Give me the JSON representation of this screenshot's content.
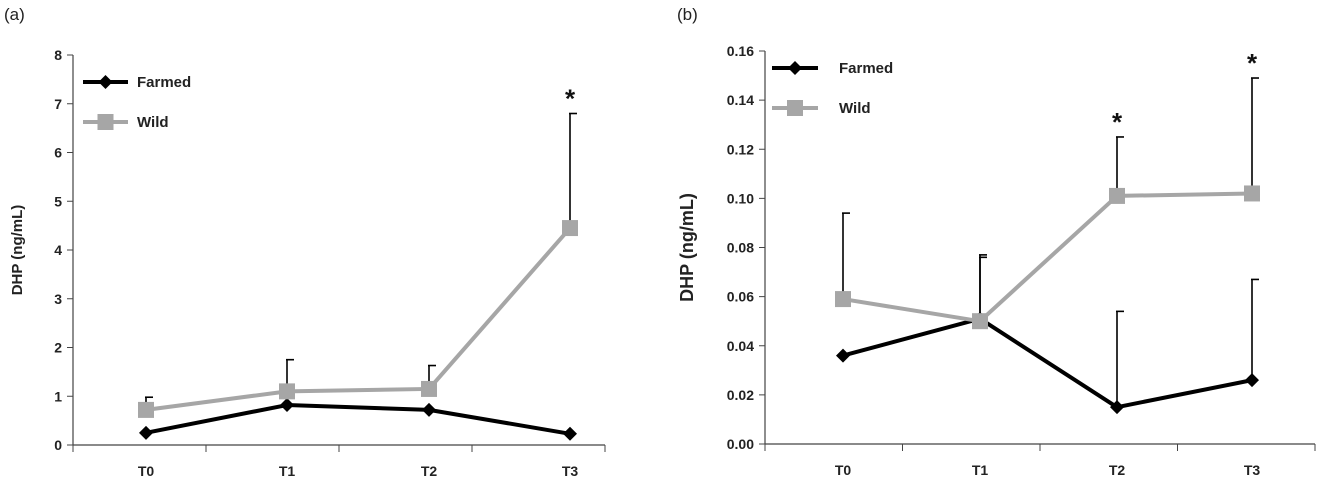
{
  "chart_data": [
    {
      "type": "line",
      "panel_label": "(a)",
      "xlabel": "",
      "ylabel": "DHP (ng/mL)",
      "categories": [
        "T0",
        "T1",
        "T2",
        "T3"
      ],
      "ylim": [
        0,
        8
      ],
      "yticks": [
        "0",
        "1",
        "2",
        "3",
        "4",
        "5",
        "6",
        "7",
        "8"
      ],
      "grid": false,
      "legend_position": "top-left",
      "series": [
        {
          "name": "Farmed",
          "color": "#000000",
          "marker": "diamond",
          "values": [
            0.25,
            0.82,
            0.72,
            0.23
          ],
          "error_upper": [
            null,
            null,
            null,
            null
          ]
        },
        {
          "name": "Wild",
          "color": "#a6a6a6",
          "marker": "square",
          "values": [
            0.72,
            1.1,
            1.15,
            4.45
          ],
          "error_upper": [
            0.98,
            1.75,
            1.63,
            6.8
          ]
        }
      ],
      "annotations": [
        {
          "category": "T3",
          "text": "*",
          "value": 6.8
        }
      ]
    },
    {
      "type": "line",
      "panel_label": "(b)",
      "xlabel": "",
      "ylabel": "DHP (ng/mL)",
      "categories": [
        "T0",
        "T1",
        "T2",
        "T3"
      ],
      "ylim": [
        0,
        0.16
      ],
      "yticks": [
        "0.00",
        "0.02",
        "0.04",
        "0.06",
        "0.08",
        "0.10",
        "0.12",
        "0.14",
        "0.16"
      ],
      "grid": false,
      "legend_position": "top-left",
      "series": [
        {
          "name": "Farmed",
          "color": "#000000",
          "marker": "diamond",
          "values": [
            0.036,
            0.051,
            0.015,
            0.026
          ],
          "error_upper": [
            null,
            0.077,
            0.054,
            0.067
          ]
        },
        {
          "name": "Wild",
          "color": "#a6a6a6",
          "marker": "square",
          "values": [
            0.059,
            0.05,
            0.101,
            0.102
          ],
          "error_upper": [
            0.094,
            0.076,
            0.125,
            0.149
          ]
        }
      ],
      "annotations": [
        {
          "category": "T2",
          "text": "*",
          "value": 0.125
        },
        {
          "category": "T3",
          "text": "*",
          "value": 0.149
        }
      ]
    }
  ]
}
